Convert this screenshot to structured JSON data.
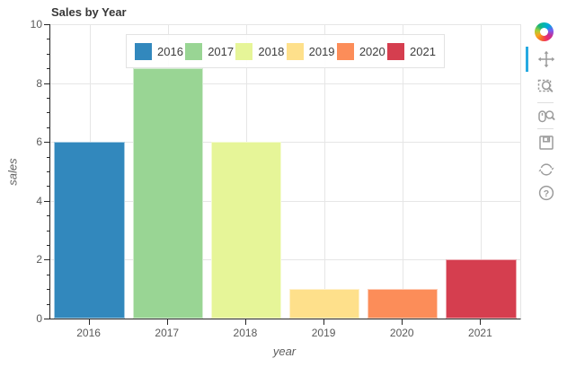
{
  "chart_data": {
    "type": "bar",
    "title": "Sales by Year",
    "xlabel": "year",
    "ylabel": "sales",
    "categories": [
      "2016",
      "2017",
      "2018",
      "2019",
      "2020",
      "2021"
    ],
    "values": [
      6,
      8.5,
      6,
      1,
      1,
      2
    ],
    "colors": [
      "#3288bd",
      "#99d594",
      "#e6f598",
      "#fee08b",
      "#fc8d59",
      "#d53e4f"
    ],
    "ylim": [
      0,
      10
    ],
    "yticks": [
      0,
      2,
      4,
      6,
      8,
      10
    ],
    "minor_tick_step": 0.5,
    "grid": true,
    "legend": {
      "position": "top-center",
      "entries": [
        {
          "label": "2016",
          "color": "#3288bd"
        },
        {
          "label": "2017",
          "color": "#99d594"
        },
        {
          "label": "2018",
          "color": "#e6f598"
        },
        {
          "label": "2019",
          "color": "#fee08b"
        },
        {
          "label": "2020",
          "color": "#fc8d59"
        },
        {
          "label": "2021",
          "color": "#d53e4f"
        }
      ]
    }
  },
  "toolbar": {
    "logo_icon": "bokeh-logo-icon",
    "active_tool": "pan",
    "tools": [
      {
        "name": "pan",
        "icon": "pan-icon",
        "active": true
      },
      {
        "name": "box-zoom",
        "icon": "box-zoom-icon",
        "active": false
      },
      {
        "name": "wheel-zoom",
        "icon": "wheel-zoom-icon",
        "active": false
      },
      {
        "name": "save",
        "icon": "save-icon",
        "active": false
      },
      {
        "name": "reset",
        "icon": "reset-icon",
        "active": false
      },
      {
        "name": "help",
        "icon": "help-icon",
        "active": false
      }
    ]
  },
  "colors": {
    "accent": "#26aae1",
    "grid": "#e6e6e6",
    "axis": "#262626",
    "tick_label": "#5a5a5a",
    "title_text": "#373737",
    "toolbar_icon": "#9b9b9b"
  }
}
